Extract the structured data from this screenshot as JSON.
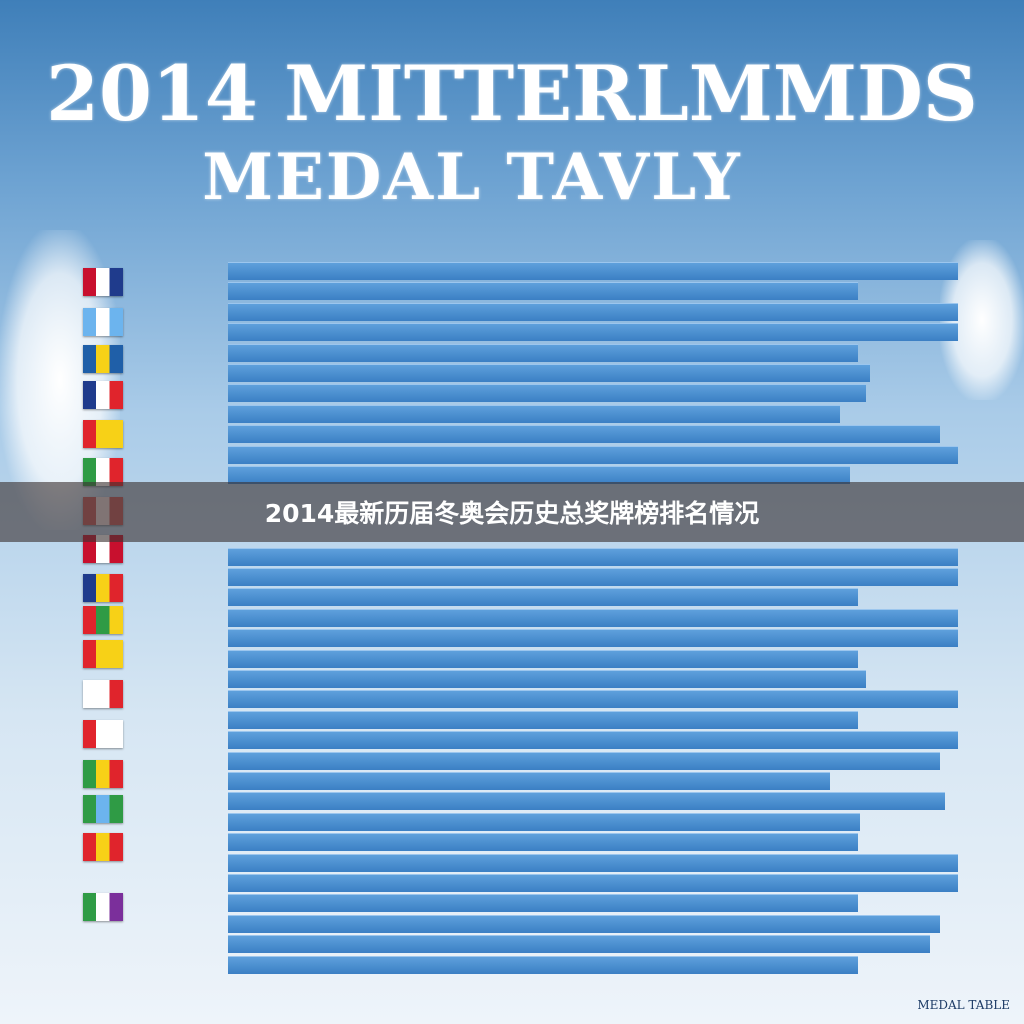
{
  "poster": {
    "title_line1": "2014 MITTERLMMDS",
    "title_line2": "MEDAL TAVLY",
    "banner_caption": "2014最新历届冬奥会历史总奖牌榜排名情况",
    "footer_text": "MEDAL TABLE",
    "bar_color": "#4a8fd2",
    "flags": [
      [
        "#c8102e",
        "#ffffff",
        "#1f3b8c"
      ],
      [
        "#6cb4ee",
        "#ffffff",
        "#6cb4ee"
      ],
      [
        "#1f5fa8",
        "#f7d117",
        "#1f5fa8"
      ],
      [
        "#1f3b8c",
        "#ffffff",
        "#e0242c"
      ],
      [
        "#e0242c",
        "#f7d117",
        "#f7d117"
      ],
      [
        "#2f9b45",
        "#ffffff",
        "#e0242c"
      ],
      [
        "#c85a5a",
        "#f0e0e0",
        "#c85a5a"
      ],
      [
        "#c8102e",
        "#ffffff",
        "#c8102e"
      ],
      [
        "#1f3b8c",
        "#f7d117",
        "#e0242c"
      ],
      [
        "#e0242c",
        "#2f9b45",
        "#f7d117"
      ],
      [
        "#e0242c",
        "#f7d117",
        "#f7d117"
      ],
      [
        "#ffffff",
        "#ffffff",
        "#e0242c"
      ],
      [
        "#e0242c",
        "#ffffff",
        "#ffffff"
      ],
      [
        "#2f9b45",
        "#f7d117",
        "#e0242c"
      ],
      [
        "#2f9b45",
        "#6cb4ee",
        "#2f9b45"
      ],
      [
        "#e0242c",
        "#f7d117",
        "#e0242c"
      ],
      [
        "#2f9b45",
        "#ffffff",
        "#7b2f9b"
      ]
    ]
  }
}
